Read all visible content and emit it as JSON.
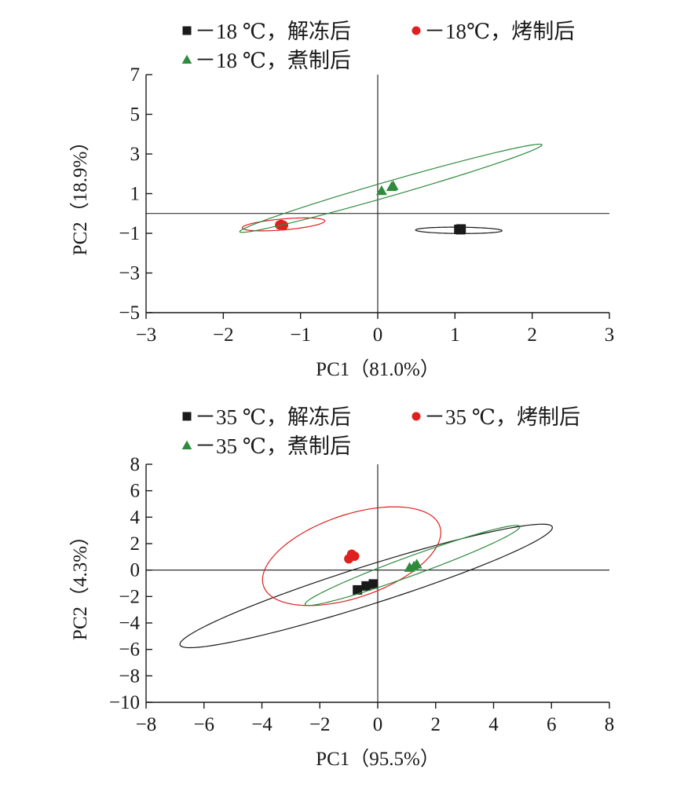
{
  "chart_data": [
    {
      "type": "scatter",
      "xlabel": "PC1（81.0%）",
      "ylabel": "PC2（18.9%）",
      "xlim": [
        -3,
        3
      ],
      "ylim": [
        -5,
        7
      ],
      "x_ticks": [
        -3,
        -2,
        -1,
        0,
        1,
        2,
        3
      ],
      "y_ticks": [
        -5,
        -3,
        -1,
        1,
        3,
        5,
        7
      ],
      "x_tick_labels": [
        "−3",
        "−2",
        "−1",
        "0",
        "1",
        "2",
        "3"
      ],
      "y_tick_labels": [
        "−5",
        "−3",
        "−1",
        "1",
        "3",
        "5",
        "7"
      ],
      "legend_position": "top",
      "series": [
        {
          "name": "－18 ℃，解冻后",
          "marker": "square",
          "color": "#1a1a1a",
          "points": [
            [
              1.05,
              -0.8
            ],
            [
              1.08,
              -0.78
            ],
            [
              1.07,
              -0.82
            ]
          ],
          "ellipse": {
            "cx": 1.05,
            "cy": -0.85,
            "half_major": 0.56,
            "half_minor": 0.16,
            "angle_deg": -2
          }
        },
        {
          "name": "－18℃，烤制后",
          "marker": "circle",
          "color": "#e02020",
          "points": [
            [
              -1.25,
              -0.55
            ],
            [
              -1.22,
              -0.6
            ],
            [
              -1.27,
              -0.58
            ]
          ],
          "ellipse": {
            "cx": -1.22,
            "cy": -0.55,
            "half_major": 0.57,
            "half_minor": 0.26,
            "angle_deg": 23
          }
        },
        {
          "name": "－18 ℃，煮制后",
          "marker": "triangle",
          "color": "#2e8b3e",
          "points": [
            [
              0.05,
              1.15
            ],
            [
              0.18,
              1.35
            ],
            [
              0.2,
              1.4
            ]
          ],
          "ellipse": {
            "cx": 0.17,
            "cy": 1.27,
            "half_major": 2.95,
            "half_minor": 0.26,
            "angle_deg": 48.7
          }
        }
      ]
    },
    {
      "type": "scatter",
      "xlabel": "PC1（95.5%）",
      "ylabel": "PC2（4.3%）",
      "xlim": [
        -8,
        8
      ],
      "ylim": [
        -10,
        8
      ],
      "x_ticks": [
        -8,
        -6,
        -4,
        -2,
        0,
        2,
        4,
        6,
        8
      ],
      "y_ticks": [
        -10,
        -8,
        -6,
        -4,
        -2,
        0,
        2,
        4,
        6,
        8
      ],
      "x_tick_labels": [
        "−8",
        "−6",
        "−4",
        "−2",
        "0",
        "2",
        "4",
        "6",
        "8"
      ],
      "y_tick_labels": [
        "−10",
        "−8",
        "−6",
        "−4",
        "−2",
        "0",
        "2",
        "4",
        "6",
        "8"
      ],
      "legend_position": "top",
      "series": [
        {
          "name": "－35 ℃，解冻后",
          "marker": "square",
          "color": "#1a1a1a",
          "points": [
            [
              -0.7,
              -1.5
            ],
            [
              -0.4,
              -1.2
            ],
            [
              -0.15,
              -1.05
            ]
          ],
          "ellipse": {
            "cx": -0.4,
            "cy": -1.2,
            "half_major": 7.85,
            "half_minor": 1.25,
            "angle_deg": 35.5
          }
        },
        {
          "name": "－35 ℃，烤制后",
          "marker": "circle",
          "color": "#e02020",
          "points": [
            [
              -1.0,
              0.85
            ],
            [
              -0.9,
              1.2
            ],
            [
              -0.8,
              1.05
            ]
          ],
          "ellipse": {
            "cx": -0.9,
            "cy": 1.05,
            "half_major": 4.2,
            "half_minor": 2.4,
            "angle_deg": 56
          }
        },
        {
          "name": "－35 ℃，煮制后",
          "marker": "triangle",
          "color": "#2e8b3e",
          "points": [
            [
              1.1,
              0.2
            ],
            [
              1.35,
              0.45
            ],
            [
              1.25,
              0.3
            ]
          ],
          "ellipse": {
            "cx": 1.2,
            "cy": 0.35,
            "half_major": 4.75,
            "half_minor": 0.6,
            "angle_deg": 39
          }
        }
      ]
    }
  ]
}
